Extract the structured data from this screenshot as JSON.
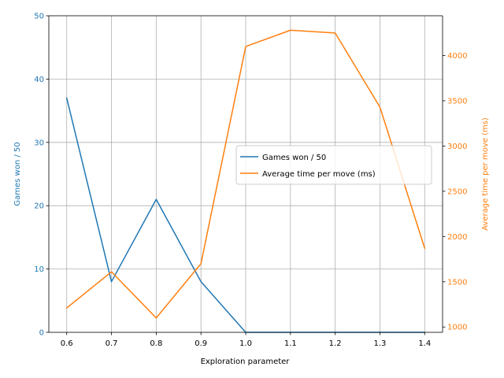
{
  "chart_data": {
    "type": "line",
    "xlabel": "Exploration parameter",
    "x": [
      0.6,
      0.7,
      0.8,
      0.9,
      1.0,
      1.1,
      1.2,
      1.3,
      1.4
    ],
    "x_ticks": [
      "0.6",
      "0.7",
      "0.8",
      "0.9",
      "1.0",
      "1.1",
      "1.2",
      "1.3",
      "1.4"
    ],
    "xlim": [
      0.56,
      1.44
    ],
    "grid": true,
    "legend_position": "center-right",
    "y_left": {
      "label": "Games won / 50",
      "color": "#1f77b4",
      "ylim": [
        0,
        50
      ],
      "ticks": [
        "0",
        "10",
        "20",
        "30",
        "40",
        "50"
      ],
      "tick_values": [
        0,
        10,
        20,
        30,
        40,
        50
      ]
    },
    "y_right": {
      "label": "Average time per move (ms)",
      "color": "#ff7f0e",
      "ylim": [
        941,
        4440
      ],
      "ticks": [
        "1000",
        "1500",
        "2000",
        "2500",
        "3000",
        "3500",
        "4000"
      ],
      "tick_values": [
        1000,
        1500,
        2000,
        2500,
        3000,
        3500,
        4000
      ]
    },
    "series": [
      {
        "name": "Games won / 50",
        "axis": "left",
        "color": "#1f77b4",
        "values": [
          37,
          8,
          21,
          8,
          0,
          0,
          0,
          0,
          0
        ]
      },
      {
        "name": "Average time per move (ms)",
        "axis": "right",
        "color": "#ff7f0e",
        "values": [
          1210,
          1610,
          1100,
          1700,
          4100,
          4280,
          4250,
          3430,
          1870
        ]
      }
    ]
  }
}
